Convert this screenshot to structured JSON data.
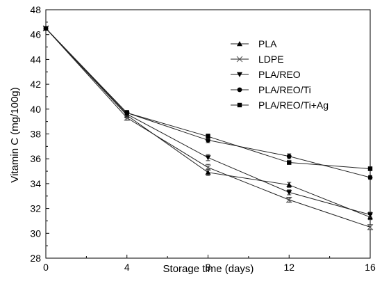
{
  "chart_data": {
    "type": "line",
    "xlabel": "Storage time (days)",
    "ylabel": "Vitamin C (mg/100g)",
    "x": [
      0,
      4,
      8,
      12,
      16
    ],
    "xlim": [
      0,
      16
    ],
    "ylim": [
      28,
      48
    ],
    "xticks": [
      "0",
      "4",
      "8",
      "12",
      "16"
    ],
    "yticks": [
      "28",
      "30",
      "32",
      "34",
      "36",
      "38",
      "40",
      "42",
      "44",
      "46",
      "48"
    ],
    "grid": false,
    "legend_position": "top-right",
    "series": [
      {
        "name": "PLA",
        "marker": "triangle-up",
        "values": [
          46.5,
          39.5,
          34.9,
          33.9,
          31.3
        ],
        "errors": [
          0.15,
          0.2,
          0.25,
          0.2,
          0.2
        ]
      },
      {
        "name": "LDPE",
        "marker": "x",
        "values": [
          46.5,
          39.3,
          35.3,
          32.7,
          30.5
        ],
        "errors": [
          0.15,
          0.2,
          0.25,
          0.2,
          0.2
        ]
      },
      {
        "name": "PLA/REO",
        "marker": "triangle-down",
        "values": [
          46.5,
          39.6,
          36.1,
          33.3,
          31.5
        ],
        "errors": [
          0.15,
          0.2,
          0.25,
          0.2,
          0.2
        ]
      },
      {
        "name": "PLA/REO/Ti",
        "marker": "circle",
        "values": [
          46.5,
          39.7,
          37.5,
          36.2,
          34.5
        ],
        "errors": [
          0.15,
          0.2,
          0.2,
          0.2,
          0.15
        ]
      },
      {
        "name": "PLA/REO/Ti+Ag",
        "marker": "square",
        "values": [
          46.5,
          39.7,
          37.8,
          35.7,
          35.2
        ],
        "errors": [
          0.15,
          0.2,
          0.2,
          0.15,
          0.15
        ]
      }
    ]
  }
}
